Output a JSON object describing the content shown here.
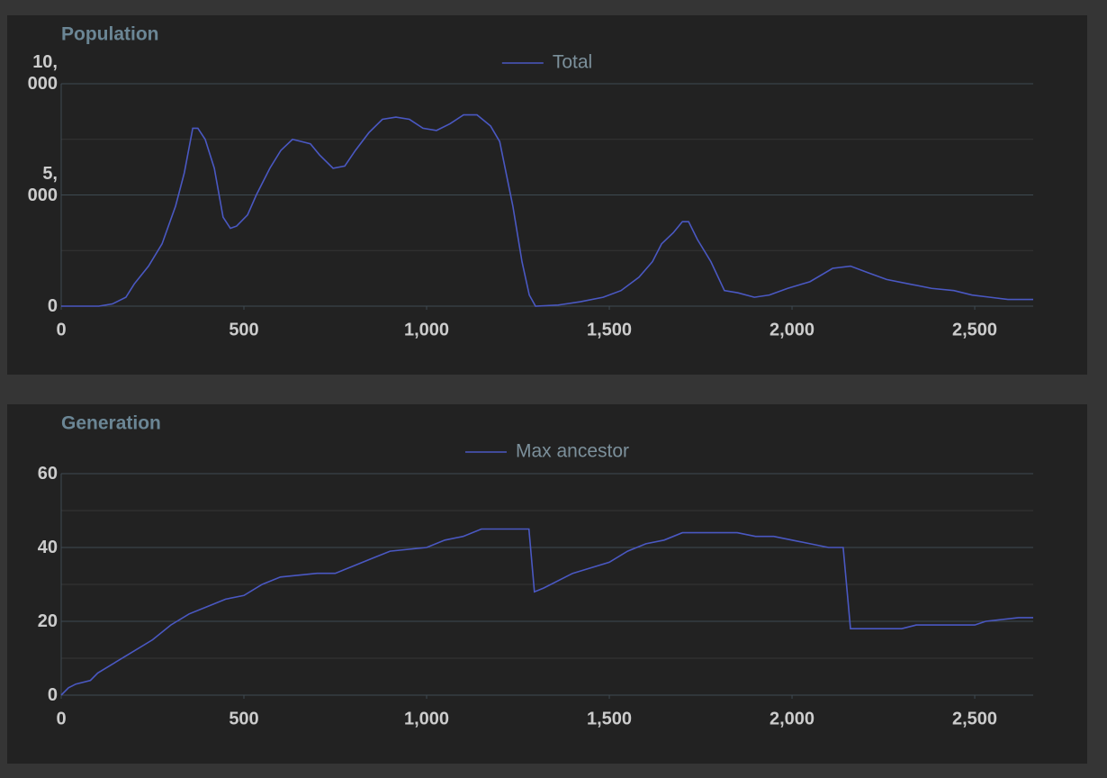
{
  "chart_data": [
    {
      "type": "line",
      "title": "Population",
      "x": [
        0,
        103,
        140,
        177,
        200,
        239,
        276,
        313,
        337,
        360,
        374,
        394,
        419,
        443,
        463,
        480,
        510,
        534,
        571,
        601,
        633,
        658,
        682,
        707,
        744,
        776,
        805,
        842,
        879,
        916,
        953,
        990,
        1027,
        1064,
        1101,
        1138,
        1175,
        1200,
        1236,
        1261,
        1281,
        1298,
        1360,
        1421,
        1483,
        1532,
        1581,
        1618,
        1643,
        1675,
        1700,
        1717,
        1741,
        1778,
        1815,
        1852,
        1897,
        1938,
        1988,
        2049,
        2111,
        2160,
        2209,
        2259,
        2320,
        2382,
        2443,
        2493,
        2542,
        2591,
        2660
      ],
      "series": [
        {
          "name": "Total",
          "color": "#4a58c2",
          "values": [
            0,
            0,
            100,
            400,
            1000,
            1800,
            2800,
            4500,
            6000,
            8000,
            8000,
            7500,
            6200,
            4000,
            3500,
            3600,
            4100,
            5000,
            6200,
            7000,
            7500,
            7400,
            7300,
            6800,
            6200,
            6300,
            7000,
            7800,
            8400,
            8500,
            8400,
            8000,
            7900,
            8200,
            8600,
            8600,
            8100,
            7400,
            4500,
            2000,
            500,
            0,
            50,
            200,
            400,
            700,
            1300,
            2000,
            2800,
            3300,
            3800,
            3800,
            3000,
            2000,
            700,
            600,
            400,
            500,
            800,
            1100,
            1700,
            1800,
            1500,
            1200,
            1000,
            800,
            700,
            500,
            400,
            300,
            300
          ]
        }
      ],
      "xlim": [
        0,
        2660
      ],
      "xticks": [
        0,
        500,
        {
          "value": 1000,
          "label": "1,000"
        },
        {
          "value": 1500,
          "label": "1,500"
        },
        {
          "value": 2000,
          "label": "2,000"
        },
        {
          "value": 2500,
          "label": "2,500"
        }
      ],
      "ylim": [
        0,
        10000
      ],
      "yticks": [
        0,
        {
          "value": 5000,
          "label": "5,000"
        },
        {
          "value": 10000,
          "label": "10,000"
        }
      ],
      "grid_minor": [
        2500,
        7500
      ],
      "grid": true
    },
    {
      "type": "line",
      "title": "Generation",
      "x": [
        0,
        20,
        40,
        80,
        100,
        150,
        200,
        250,
        300,
        350,
        400,
        450,
        500,
        550,
        600,
        700,
        750,
        800,
        850,
        900,
        1000,
        1050,
        1100,
        1150,
        1280,
        1295,
        1320,
        1400,
        1500,
        1550,
        1600,
        1650,
        1700,
        1850,
        1900,
        1950,
        2000,
        2050,
        2100,
        2140,
        2160,
        2300,
        2340,
        2500,
        2530,
        2620,
        2660
      ],
      "series": [
        {
          "name": "Max ancestor",
          "color": "#4a58c2",
          "values": [
            0,
            2,
            3,
            4,
            6,
            9,
            12,
            15,
            19,
            22,
            24,
            26,
            27,
            30,
            32,
            33,
            33,
            35,
            37,
            39,
            40,
            42,
            43,
            45,
            45,
            28,
            29,
            33,
            36,
            39,
            41,
            42,
            44,
            44,
            43,
            43,
            42,
            41,
            40,
            40,
            18,
            18,
            19,
            19,
            20,
            21,
            21
          ]
        }
      ],
      "xlim": [
        0,
        2660
      ],
      "xticks": [
        0,
        500,
        {
          "value": 1000,
          "label": "1,000"
        },
        {
          "value": 1500,
          "label": "1,500"
        },
        {
          "value": 2000,
          "label": "2,000"
        },
        {
          "value": 2500,
          "label": "2,500"
        }
      ],
      "ylim": [
        0,
        60
      ],
      "yticks": [
        0,
        20,
        40,
        60
      ],
      "grid_minor": [
        10,
        30,
        50
      ],
      "grid": true
    }
  ]
}
